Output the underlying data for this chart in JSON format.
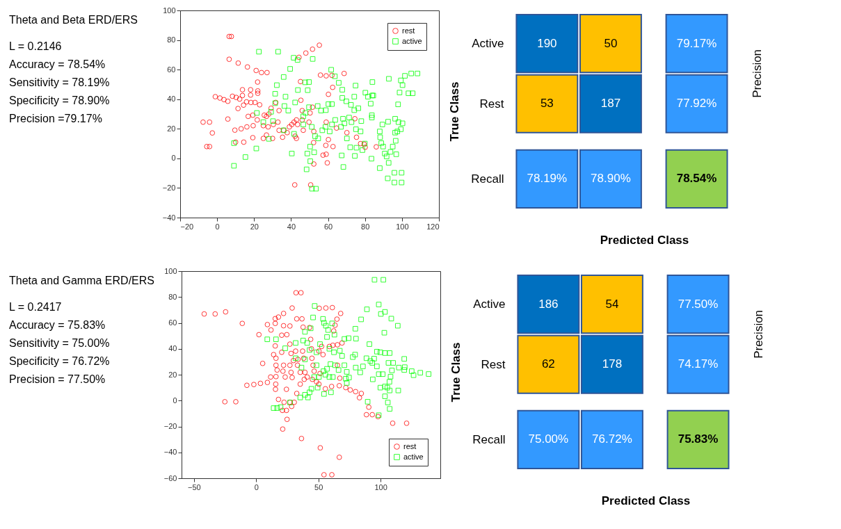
{
  "chart_data": [
    {
      "type": "other",
      "title": "Theta and Beta ERD/ERS",
      "annotations": [
        "L = 0.2146",
        "Accuracy = 78.54%",
        "Sensitivity = 78.19%",
        "Specificity = 78.90%",
        "Precision =79.17%"
      ]
    },
    {
      "type": "scatter",
      "xlim": [
        -20,
        120
      ],
      "ylim": [
        -40,
        100
      ],
      "xticks": [
        -20,
        0,
        20,
        40,
        60,
        80,
        100,
        120
      ],
      "yticks": [
        -40,
        -20,
        0,
        20,
        40,
        60,
        80,
        100
      ],
      "grid": false,
      "legend": "top right",
      "series": [
        {
          "name": "rest",
          "color": "#ff0000",
          "marker": "circle",
          "x": [
            6.5,
            7.7,
            6.5,
            11.4,
            16.4,
            21.1,
            24,
            27,
            21.9,
            22,
            22,
            13.7,
            18.1,
            13.7,
            18.1,
            -1,
            1.5,
            3.7,
            5.8,
            8.3,
            10.3,
            12.2,
            15.9,
            18.3,
            20.5,
            23,
            11.3,
            14.3,
            5.8,
            -7.6,
            -4.1,
            -2.6,
            -5.6,
            -4.1,
            9.6,
            10,
            14.4,
            19.3,
            13,
            16.1,
            16.8,
            19.3,
            19.5,
            21.7,
            25.5,
            26.7,
            28,
            25,
            27.6,
            30.4,
            32.9,
            26.7,
            25,
            30,
            29.2,
            31.7,
            33.5,
            33.5,
            36,
            37.9,
            35.4,
            39.1,
            40.4,
            41.6,
            42.9,
            43.5,
            42.2,
            42.9,
            45.1,
            45.3,
            46,
            46,
            46.6,
            44.3,
            48,
            51.6,
            55.3,
            50.3,
            49.7,
            51.6,
            55.9,
            59,
            62.1,
            62.5,
            68.7,
            60.2,
            52.3,
            52.2,
            52.3,
            57.3,
            59,
            59.6,
            58.8,
            62.7,
            59,
            60.2,
            64.6,
            70.2,
            74.5,
            75.4,
            77.6,
            79.5,
            80.1,
            86.1,
            42,
            50.6
          ],
          "values": [
            82.4,
            82.4,
            67,
            64.4,
            61.8,
            59.4,
            58,
            58,
            51.6,
            45.6,
            44,
            46.4,
            46.4,
            42.5,
            42.8,
            41.7,
            40.8,
            39.7,
            38.6,
            42,
            41.2,
            40.1,
            38.2,
            37.8,
            37.8,
            36.2,
            33.7,
            36,
            26.6,
            24.5,
            24.5,
            17.2,
            8,
            8,
            19.1,
            11,
            11,
            14,
            20,
            21.3,
            28.4,
            29.2,
            22.1,
            26,
            29.2,
            28.4,
            30,
            22.1,
            21.3,
            22.9,
            24.5,
            15.8,
            13.5,
            13.5,
            33.9,
            37.8,
            32.3,
            19,
            19,
            17.4,
            14.3,
            21.3,
            22.9,
            24.5,
            26,
            22.9,
            15,
            13.5,
            51.9,
            39.3,
            32.3,
            26,
            19,
            68.3,
            71.2,
            73.8,
            76.5,
            30.7,
            24.5,
            34.6,
            56.3,
            55.8,
            56.1,
            48,
            57.4,
            43.3,
            18.2,
            10.7,
            -3.8,
            2.2,
            2.8,
            -3,
            8.8,
            8,
            24.5,
            12.7,
            20.5,
            17.4,
            26.8,
            14.3,
            10,
            9.6,
            7.5,
            7.8,
            -17.9,
            -17.9
          ]
        },
        {
          "name": "active",
          "color": "#00ff00",
          "marker": "square",
          "x": [
            22.6,
            33,
            41.4,
            43.5,
            51.7,
            39.5,
            36,
            32.3,
            31.4,
            37,
            43.7,
            49,
            47.6,
            49.7,
            61.7,
            63.7,
            65.8,
            67.7,
            67.7,
            69.9,
            72.4,
            74.2,
            74.9,
            74.2,
            76.4,
            78,
            80.2,
            81.6,
            83.9,
            84.5,
            84,
            83.1,
            83.7,
            83.7,
            92.9,
            99.4,
            100.3,
            101.6,
            105,
            108.4,
            103.5,
            105.8,
            98.7,
            97.9,
            96.3,
            98.1,
            100.3,
            99.4,
            97.5,
            96.3,
            92.5,
            89.4,
            88,
            88.2,
            88.8,
            89.8,
            90.7,
            91.7,
            93.8,
            95,
            96.6,
            96.9,
            92.8,
            88,
            92.3,
            95.9,
            95.9,
            99.8,
            99.8,
            83.5,
            79.9,
            78.6,
            74.5,
            75.4,
            72,
            75.1,
            77.6,
            72.7,
            71.4,
            68.1,
            68.9,
            67,
            70.2,
            67.4,
            68.3,
            63.9,
            62.1,
            60.9,
            58.6,
            56.9,
            56.2,
            58.8,
            60.2,
            62.1,
            54.4,
            51.2,
            53,
            54.7,
            50.3,
            52.5,
            48.8,
            48.4,
            50.4,
            51.3,
            53.5,
            40.4,
            46.6,
            46.6,
            47.8,
            49.7,
            42.2,
            38.5,
            36.4,
            31.4,
            29.2,
            30.2,
            28,
            25,
            21.5,
            21.2,
            15.3,
            9.1,
            9.1,
            36,
            41.6
          ],
          "values": [
            72.1,
            72.1,
            68,
            66.5,
            67.2,
            60.5,
            55,
            49.5,
            43.7,
            41.7,
            46.2,
            46.1,
            51.4,
            51.6,
            59.9,
            55.5,
            51.1,
            46.4,
            40.9,
            38.6,
            36.2,
            32.6,
            49.2,
            41.7,
            33.9,
            25.2,
            44.4,
            41.7,
            42.5,
            42.5,
            51.6,
            37,
            29.2,
            27.6,
            53.8,
            52.7,
            49.5,
            55.8,
            57.4,
            57.4,
            44,
            44,
            44.5,
            36.5,
            26.8,
            24.5,
            23.7,
            19.7,
            18.2,
            17.4,
            24.8,
            22.9,
            18.2,
            14.3,
            10.3,
            8,
            3.3,
            1.3,
            4.4,
            8,
            11.9,
            2.8,
            -3,
            -6.6,
            -13.5,
            -16.3,
            -9.7,
            -16.3,
            -9.7,
            -0.2,
            10,
            5.6,
            1.7,
            7.2,
            7.5,
            19.7,
            18.2,
            24.5,
            27.6,
            26.8,
            23.7,
            21.3,
            13.5,
            2,
            -5.8,
            26,
            22.9,
            18.2,
            21.3,
            19,
            32.3,
            32.6,
            36.7,
            36.7,
            35.4,
            21.3,
            15,
            13.5,
            8,
            4.1,
            3.3,
            -7.4,
            -1.9,
            -20.5,
            -20.5,
            3.3,
            22.9,
            28.4,
            30.7,
            34.6,
            37.8,
            32.3,
            35.4,
            37.3,
            31.5,
            25.2,
            13.2,
            24.5,
            30.7,
            6.7,
            0.9,
            10.3,
            -5,
            19,
            16.6
          ]
        }
      ]
    },
    {
      "type": "other",
      "y_categories": [
        "Active",
        "Rest",
        "Recall"
      ],
      "xlabel": "Predicted Class",
      "ylabel": "True Class",
      "y2label": "Precision",
      "cell_labels": [
        [
          "190",
          "50",
          "79.17%"
        ],
        [
          "53",
          "187",
          "77.92%"
        ],
        [
          "78.19%",
          "78.90%",
          "78.54%"
        ]
      ],
      "colors": [
        [
          "#0070c0",
          "#ffc000",
          "#3399ff"
        ],
        [
          "#ffc000",
          "#0070c0",
          "#3399ff"
        ],
        [
          "#3399ff",
          "#3399ff",
          "#92d050"
        ]
      ]
    },
    {
      "type": "other",
      "title": "Theta and Gamma ERD/ERS",
      "annotations": [
        "L = 0.2417",
        "Accuracy = 75.83%",
        "Sensitivity = 75.00%",
        "Specificity = 76.72%",
        "Precision = 77.50%"
      ]
    },
    {
      "type": "scatter",
      "xlim": [
        -60,
        148
      ],
      "ylim": [
        -60,
        100
      ],
      "xticks": [
        -50,
        0,
        50,
        100
      ],
      "yticks": [
        -60,
        -40,
        -20,
        0,
        20,
        40,
        60,
        80,
        100
      ],
      "grid": false,
      "legend": "bottom right",
      "series": [
        {
          "name": "rest",
          "color": "#ff0000",
          "marker": "circle",
          "x": [
            -41.8,
            -33,
            -24.6,
            -11.2,
            2.2,
            -7.5,
            -1.9,
            3.4,
            -25.2,
            -16.4,
            5.2,
            9,
            11.9,
            9,
            11.6,
            15.3,
            15.3,
            15.3,
            14,
            15.9,
            17.9,
            22,
            22,
            24.6,
            27.1,
            28.9,
            32,
            36,
            32.6,
            36.8,
            37.7,
            20.5,
            15.9,
            16.8,
            15.9,
            15.7,
            15.5,
            20.5,
            22,
            23.3,
            24.3,
            21.5,
            27.1,
            28,
            29.9,
            27.1,
            28,
            28.9,
            31.7,
            33.6,
            33.2,
            35.4,
            35.4,
            32.6,
            37.3,
            38.2,
            39.2,
            38.6,
            41,
            42.9,
            43.8,
            44.4,
            44.8,
            45.7,
            46.6,
            48.5,
            45.1,
            50.7,
            56,
            61.2,
            67.9,
            64.9,
            63.4,
            62.3,
            52.6,
            50.4,
            53.7,
            58.8,
            61.6,
            51.3,
            50.4,
            55.6,
            60.6,
            66.8,
            67.2,
            65.3,
            69,
            65.3,
            72,
            75.6,
            79.9,
            83,
            84.5,
            90.5,
            88.6,
            93.3,
            97.9,
            109.7,
            120.9,
            17.9,
            22.4,
            27.1,
            30.6,
            28.5,
            24.3,
            21.1,
            24.8,
            21.3,
            36.4,
            51.5,
            66.8,
            54.5,
            60.8
          ],
          "values": [
            66.9,
            66.9,
            68.5,
            59.6,
            50.9,
            11.8,
            12.4,
            13.3,
            -0.9,
            -0.9,
            28.7,
            58.7,
            54.5,
            14,
            18.2,
            63.3,
            59.6,
            42.2,
            35.5,
            32.7,
            64.5,
            67.3,
            57.8,
            50.9,
            57.6,
            71.5,
            83.3,
            83.3,
            63.1,
            63.1,
            56.7,
            50.5,
            27.3,
            23.6,
            18.5,
            12.7,
            8.7,
            37.3,
            27.3,
            18.2,
            8.7,
            22.7,
            43.6,
            36.4,
            30.9,
            27.3,
            21.8,
            17.8,
            38.2,
            31.8,
            27.3,
            21.8,
            12.7,
            5.5,
            38.2,
            32.7,
            21.8,
            16.4,
            18.2,
            56.4,
            47.3,
            40,
            32.7,
            27.3,
            22.7,
            14.5,
            16.4,
            71.3,
            71.5,
            71.8,
            67.3,
            62.9,
            58.2,
            53.8,
            41.8,
            38.2,
            35.5,
            41.8,
            42.7,
            20.9,
            12.7,
            9.1,
            10.9,
            11.5,
            17.3,
            27.3,
            44.5,
            43.1,
            10,
            8.2,
            6.9,
            2.2,
            5.5,
            -5.1,
            -10.9,
            -10.9,
            -12.4,
            -17.5,
            -17.5,
            0.9,
            -1.3,
            -1.3,
            -1.3,
            -4.5,
            -7.6,
            -7.6,
            -14.5,
            -22,
            -29.3,
            -36.5,
            -43.8,
            -57.3,
            -57.3
          ]
        },
        {
          "name": "active",
          "color": "#00ff00",
          "marker": "square",
          "x": [
            95.1,
            102.2,
            98.5,
            100.2,
            103.5,
            89,
            84.3,
            108.6,
            113.8,
            103,
            79.7,
            80.2,
            91,
            47,
            45.7,
            43.8,
            39.2,
            53.7,
            54.5,
            56,
            57.8,
            61,
            62.9,
            8.9,
            15.9,
            23.3,
            31.7,
            37.7,
            41,
            42.9,
            48.5,
            51.3,
            56.9,
            58.8,
            62.5,
            67.2,
            70.9,
            74.3,
            77.6,
            79.5,
            80,
            83.6,
            85.8,
            88.6,
            91.8,
            94.8,
            97,
            99.8,
            103.5,
            107.3,
            106.3,
            93.3,
            97,
            98.5,
            101.7,
            93.7,
            110.1,
            109.1,
            108,
            107.1,
            119,
            119.4,
            114.7,
            119,
            125,
            126.5,
            131.9,
            138.6,
            99.8,
            103.5,
            105.4,
            107.3,
            114.2,
            103.5,
            105.8,
            107.3,
            98.5,
            89.6,
            69,
            70.9,
            72.8,
            72,
            74.6,
            72.8,
            66.2,
            63.4,
            59.7,
            56.9,
            54.1,
            55.6,
            58.8,
            61.6,
            60.1,
            54.5,
            49.4,
            44.4,
            42.9,
            41.6,
            35.4,
            39.2,
            27.2,
            14,
            16.8,
            19.6,
            36.4,
            39.2,
            31.7,
            48.5,
            46.6,
            50.4
          ],
          "values": [
            93.3,
            93.3,
            74.2,
            66.9,
            68.5,
            70.5,
            62.7,
            63.3,
            57.8,
            52.4,
            55.5,
            47.8,
            43.6,
            73.1,
            64.2,
            55.8,
            53.1,
            63.1,
            60,
            57.8,
            54.5,
            59.6,
            50.9,
            47.3,
            47.3,
            40.4,
            44.5,
            46.4,
            44.5,
            39.1,
            37.3,
            43.6,
            49.1,
            40,
            37.3,
            38.5,
            47.6,
            48.2,
            33.6,
            35.5,
            25.5,
            21.8,
            26.4,
            32.7,
            30.5,
            32.4,
            37.8,
            37.3,
            36.7,
            36.7,
            29.1,
            29.1,
            26.4,
            20.4,
            20.4,
            16.4,
            29.1,
            23.3,
            18.5,
            14.5,
            32.2,
            25.8,
            25.5,
            23.6,
            22.7,
            19.6,
            21.5,
            20.5,
            10,
            10.9,
            10,
            7.8,
            7.8,
            3.3,
            -1.5,
            -6.4,
            -11.3,
            -0.9,
            34.5,
            27.3,
            22.2,
            16.9,
            17.8,
            13.6,
            23.6,
            27.3,
            28.2,
            24.5,
            22.7,
            20,
            18.2,
            18.2,
            6.4,
            5.1,
            10,
            9.1,
            6.4,
            2.4,
            2.4,
            4.5,
            -1.5,
            -5.8,
            -5.8,
            -5.1,
            25.5,
            31.8,
            32.7,
            27.3,
            18.2,
            18.2
          ]
        }
      ]
    },
    {
      "type": "other",
      "y_categories": [
        "Active",
        "Rest",
        "Recall"
      ],
      "xlabel": "Predicted Class",
      "ylabel": "True Class",
      "y2label": "Precision",
      "cell_labels": [
        [
          "186",
          "54",
          "77.50%"
        ],
        [
          "62",
          "178",
          "74.17%"
        ],
        [
          "75.00%",
          "76.72%",
          "75.83%"
        ]
      ],
      "colors": [
        [
          "#0070c0",
          "#ffc000",
          "#3399ff"
        ],
        [
          "#ffc000",
          "#0070c0",
          "#3399ff"
        ],
        [
          "#3399ff",
          "#3399ff",
          "#92d050"
        ]
      ]
    }
  ]
}
